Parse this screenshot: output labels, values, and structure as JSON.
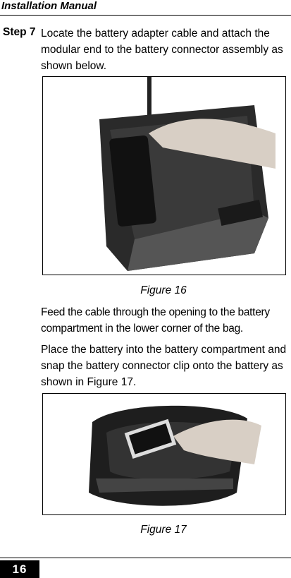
{
  "header": {
    "title": "Installation Manual"
  },
  "step": {
    "label": "Step 7",
    "text": "Locate the battery adapter cable and attach the modular end to the battery connector assembly as shown below."
  },
  "figures": [
    {
      "caption": "Figure 16"
    },
    {
      "caption": "Figure 17"
    }
  ],
  "paragraphs": [
    "Feed the cable through the opening to the battery compartment in the lower corner of the bag.",
    "Place the battery into the battery compartment and snap the battery connector clip onto the battery as shown in Figure 17."
  ],
  "footer": {
    "page": "16"
  }
}
